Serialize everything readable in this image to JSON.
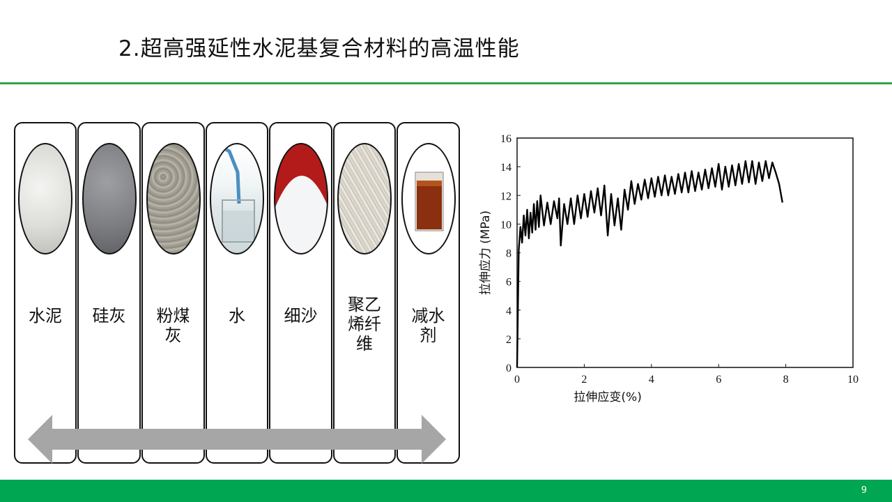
{
  "slide": {
    "title": "2.超高强延性水泥基复合材料的高温性能",
    "page_number": "9",
    "accent_color": "#00a651"
  },
  "materials": {
    "items": [
      {
        "label": "水泥",
        "swatch": "cement-powder"
      },
      {
        "label": "硅灰",
        "swatch": "silica-fume"
      },
      {
        "label": "粉煤灰",
        "swatch": "fly-ash"
      },
      {
        "label": "水",
        "swatch": "water-glass"
      },
      {
        "label": "细沙",
        "swatch": "fine-sand"
      },
      {
        "label": "聚乙烯纤维",
        "swatch": "polyethylene-fiber"
      },
      {
        "label": "减水剂",
        "swatch": "superplasticizer-beaker"
      }
    ],
    "arrow_icon": "double-headed-arrow"
  },
  "chart_data": {
    "type": "line",
    "xlabel": "拉伸应变(%)",
    "ylabel": "拉伸应力 (MPa)",
    "xlim": [
      0,
      10
    ],
    "ylim": [
      0,
      16
    ],
    "x_ticks": [
      "0",
      "2",
      "4",
      "6",
      "8",
      "10"
    ],
    "y_ticks": [
      "0",
      "2",
      "4",
      "6",
      "8",
      "10",
      "12",
      "14",
      "16"
    ],
    "grid": false,
    "series": [
      {
        "values": [
          [
            0.0,
            0.0
          ],
          [
            0.05,
            8.2
          ],
          [
            0.1,
            9.8
          ],
          [
            0.15,
            8.7
          ],
          [
            0.2,
            10.6
          ],
          [
            0.25,
            9.2
          ],
          [
            0.3,
            11.0
          ],
          [
            0.35,
            9.0
          ],
          [
            0.4,
            10.8
          ],
          [
            0.45,
            9.4
          ],
          [
            0.5,
            11.4
          ],
          [
            0.55,
            9.6
          ],
          [
            0.6,
            11.6
          ],
          [
            0.65,
            9.8
          ],
          [
            0.7,
            12.0
          ],
          [
            0.8,
            9.9
          ],
          [
            0.9,
            11.5
          ],
          [
            1.0,
            10.0
          ],
          [
            1.1,
            11.6
          ],
          [
            1.2,
            10.4
          ],
          [
            1.25,
            11.8
          ],
          [
            1.3,
            8.5
          ],
          [
            1.4,
            11.4
          ],
          [
            1.5,
            10.0
          ],
          [
            1.6,
            11.8
          ],
          [
            1.7,
            10.0
          ],
          [
            1.8,
            12.0
          ],
          [
            1.9,
            10.4
          ],
          [
            2.0,
            12.1
          ],
          [
            2.1,
            10.5
          ],
          [
            2.2,
            12.3
          ],
          [
            2.3,
            10.8
          ],
          [
            2.4,
            12.5
          ],
          [
            2.5,
            10.6
          ],
          [
            2.6,
            12.7
          ],
          [
            2.7,
            9.2
          ],
          [
            2.8,
            12.1
          ],
          [
            2.9,
            9.9
          ],
          [
            3.0,
            11.8
          ],
          [
            3.1,
            9.6
          ],
          [
            3.2,
            12.4
          ],
          [
            3.3,
            11.0
          ],
          [
            3.4,
            13.0
          ],
          [
            3.5,
            11.4
          ],
          [
            3.6,
            12.8
          ],
          [
            3.7,
            11.7
          ],
          [
            3.8,
            13.1
          ],
          [
            3.9,
            11.8
          ],
          [
            4.0,
            13.2
          ],
          [
            4.1,
            11.9
          ],
          [
            4.2,
            13.3
          ],
          [
            4.3,
            12.0
          ],
          [
            4.4,
            13.4
          ],
          [
            4.5,
            12.0
          ],
          [
            4.6,
            13.3
          ],
          [
            4.7,
            12.1
          ],
          [
            4.8,
            13.5
          ],
          [
            4.9,
            12.2
          ],
          [
            5.0,
            13.6
          ],
          [
            5.1,
            12.2
          ],
          [
            5.2,
            13.7
          ],
          [
            5.3,
            12.3
          ],
          [
            5.4,
            13.6
          ],
          [
            5.5,
            12.4
          ],
          [
            5.6,
            13.8
          ],
          [
            5.7,
            12.5
          ],
          [
            5.8,
            13.9
          ],
          [
            5.9,
            12.6
          ],
          [
            6.0,
            14.2
          ],
          [
            6.1,
            12.4
          ],
          [
            6.2,
            14.0
          ],
          [
            6.3,
            12.6
          ],
          [
            6.4,
            14.1
          ],
          [
            6.5,
            12.7
          ],
          [
            6.6,
            14.2
          ],
          [
            6.7,
            12.8
          ],
          [
            6.8,
            14.4
          ],
          [
            6.9,
            12.9
          ],
          [
            7.0,
            14.4
          ],
          [
            7.1,
            12.8
          ],
          [
            7.2,
            14.3
          ],
          [
            7.3,
            13.0
          ],
          [
            7.4,
            14.4
          ],
          [
            7.5,
            13.2
          ],
          [
            7.6,
            14.3
          ],
          [
            7.7,
            13.6
          ],
          [
            7.8,
            12.8
          ],
          [
            7.9,
            11.5
          ]
        ]
      }
    ]
  }
}
